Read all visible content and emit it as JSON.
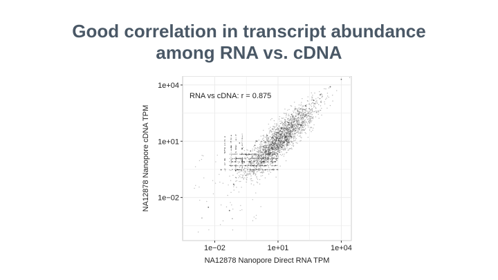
{
  "slide": {
    "title_line1": "Good correlation in transcript abundance",
    "title_line2": "among RNA vs. cDNA"
  },
  "chart_data": {
    "type": "scatter",
    "title": "",
    "xlabel": "NA12878 Nanopore Direct RNA TPM",
    "ylabel": "NA12878 Nanopore cDNA TPM",
    "x_scale": "log10",
    "y_scale": "log10",
    "xlim": [
      0.0003,
      30000
    ],
    "ylim": [
      5e-05,
      30000
    ],
    "x_ticks": [
      {
        "value": 0.01,
        "label": "1e−02"
      },
      {
        "value": 10,
        "label": "1e+01"
      },
      {
        "value": 10000,
        "label": "1e+04"
      }
    ],
    "y_ticks": [
      {
        "value": 0.01,
        "label": "1e−02"
      },
      {
        "value": 10,
        "label": "1e+01"
      },
      {
        "value": 10000,
        "label": "1e+04"
      }
    ],
    "annotation": "RNA vs cDNA: r = 0.875",
    "correlation_r": 0.875,
    "grid": true,
    "legend": "none",
    "colors": {
      "points": "#000000",
      "panel_background": "#ffffff",
      "grid": "#ebebeb",
      "panel_border": "#cccccc"
    },
    "series": [
      {
        "points": [
          [
            0.005,
            0.003
          ],
          [
            0.02,
            0.3
          ],
          [
            0.05,
            0.002
          ],
          [
            0.08,
            0.05
          ],
          [
            0.1,
            0.5
          ],
          [
            0.15,
            8
          ],
          [
            0.2,
            4
          ],
          [
            0.2,
            1
          ],
          [
            0.3,
            2
          ],
          [
            0.5,
            3
          ],
          [
            0.8,
            6
          ],
          [
            1,
            10
          ],
          [
            2,
            5
          ],
          [
            3,
            20
          ],
          [
            5,
            15
          ],
          [
            10,
            30
          ],
          [
            20,
            50
          ],
          [
            30,
            100
          ],
          [
            50,
            200
          ],
          [
            100,
            300
          ],
          [
            200,
            800
          ],
          [
            500,
            1500
          ],
          [
            1000,
            3000
          ],
          [
            3000,
            8000
          ],
          [
            10000,
            20000
          ]
        ]
      }
    ]
  }
}
